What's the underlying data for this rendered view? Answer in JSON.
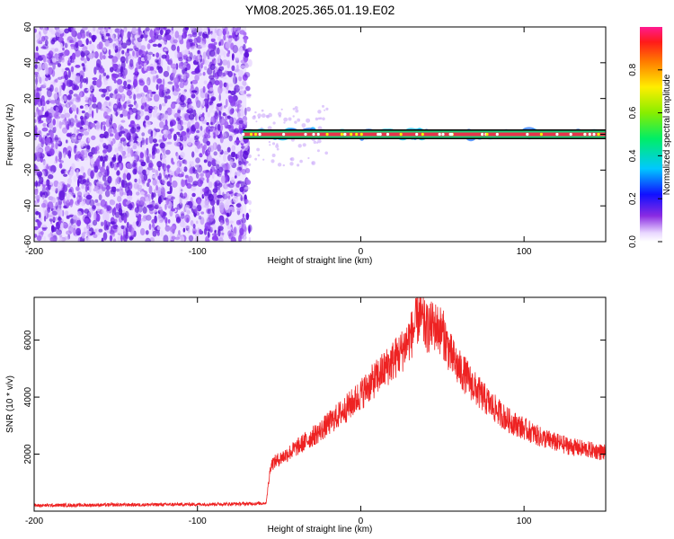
{
  "title": "YM08.2025.365.01.19.E02",
  "colors": {
    "snr_line": "#ee2222",
    "scatter": "#7a2ae0",
    "band_core": "#e8344a",
    "band_edge": "#22cc77",
    "band_outline": "#000000"
  },
  "chart_data": [
    {
      "type": "heatmap",
      "xlabel": "Height of straight line (km)",
      "ylabel": "Frequency (Hz)",
      "xlim": [
        -200,
        150
      ],
      "ylim": [
        -60,
        60
      ],
      "xticks": [
        -200,
        -100,
        0,
        100
      ],
      "yticks": [
        -60,
        -40,
        -20,
        0,
        20,
        40,
        60
      ],
      "noise_region_x": [
        -200,
        -70
      ],
      "signal_band": {
        "x_start": -72,
        "x_end": 150,
        "frequency": 0,
        "half_width": 2
      },
      "colorbar": {
        "label": "Normalized spectral amplitude",
        "range": [
          0.0,
          1.0
        ],
        "ticks": [
          "0.0",
          "0.2",
          "0.4",
          "0.6",
          "0.8"
        ],
        "tick_values": [
          0.0,
          0.2,
          0.4,
          0.6,
          0.8
        ]
      }
    },
    {
      "type": "line",
      "xlabel": "Height of straight line (km)",
      "ylabel": "SNR (10 * v/v)",
      "xlim": [
        -200,
        150
      ],
      "ylim": [
        0,
        7500
      ],
      "xticks": [
        -200,
        -100,
        0,
        100
      ],
      "yticks": [
        2000,
        4000,
        6000
      ],
      "series": [
        {
          "x": [
            -200,
            -150,
            -100,
            -70,
            -58,
            -55,
            -45,
            -35,
            -25,
            -15,
            -5,
            5,
            15,
            25,
            32,
            36,
            40,
            45,
            50,
            55,
            60,
            65,
            70,
            80,
            90,
            100,
            110,
            120,
            130,
            140,
            150
          ],
          "y": [
            200,
            220,
            240,
            260,
            280,
            1650,
            2000,
            2400,
            2800,
            3300,
            3800,
            4400,
            5000,
            5600,
            6300,
            6900,
            6400,
            6500,
            6300,
            5500,
            5000,
            4700,
            4300,
            3700,
            3200,
            2900,
            2600,
            2400,
            2250,
            2150,
            2050
          ]
        }
      ]
    }
  ]
}
